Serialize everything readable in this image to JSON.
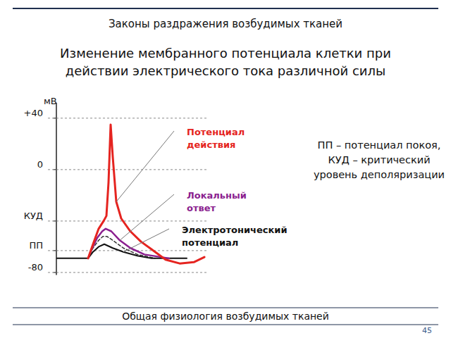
{
  "header": "Законы раздражения возбудимых тканей",
  "footer": "Общая физиология возбудимых тканей",
  "page_number": "45",
  "notes": [
    "ПП – потенциал покоя,",
    "КУД – критический уровень деполяризации"
  ],
  "chart_data": {
    "type": "line",
    "title": "Изменение мембранного потенциала клетки при действии электрического тока различной силы",
    "y_label": "мВ",
    "xlim": [
      0,
      215
    ],
    "ylim": [
      -82,
      52
    ],
    "yticks": [
      {
        "value": 40,
        "label": "+40"
      },
      0,
      {
        "value": -40,
        "label": "КУД"
      },
      {
        "value": -63,
        "label": "ПП"
      },
      -80
    ],
    "grid": true,
    "tick_labels": "y",
    "series": [
      {
        "name": "Потенциал действия",
        "color": "#e52420",
        "line_style": "solid",
        "x": [
          45,
          52,
          60,
          67,
          71,
          74,
          77,
          80,
          85,
          92,
          105,
          120,
          135,
          155,
          175,
          195,
          210
        ],
        "values": [
          -69,
          -58,
          -46,
          -40,
          -36,
          -10,
          35,
          10,
          -25,
          -38,
          -48,
          -56,
          -62,
          -70,
          -73,
          -72,
          -68
        ]
      },
      {
        "name": "Локальный ответ",
        "color": "#8b1f8f",
        "line_style": "solid",
        "x": [
          45,
          50,
          58,
          65,
          70,
          78,
          90,
          105,
          125,
          160
        ],
        "values": [
          -69,
          -62,
          -53,
          -48,
          -46,
          -48,
          -55,
          -61,
          -66,
          -69
        ]
      },
      {
        "name": "Электротонический потенциал",
        "color": "#111111",
        "line_style": "solid",
        "x": [
          0,
          45,
          52,
          60,
          68,
          80,
          95,
          115,
          135,
          185
        ],
        "values": [
          -69,
          -69,
          -64,
          -60,
          -58,
          -61,
          -64,
          -67,
          -69,
          -69
        ]
      },
      {
        "color": "#333333",
        "line_style": "dashed",
        "x": [
          45,
          52,
          60,
          66,
          72,
          80,
          95,
          115,
          140
        ],
        "values": [
          -69,
          -61,
          -55,
          -52,
          -52,
          -55,
          -61,
          -66,
          -69
        ]
      }
    ]
  }
}
